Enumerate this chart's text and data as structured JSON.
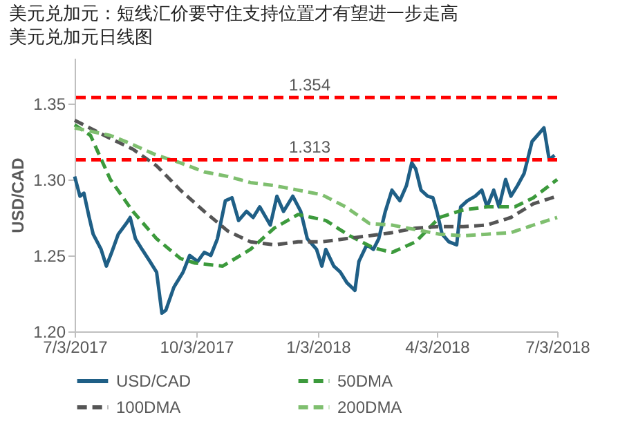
{
  "chart_data": {
    "type": "line",
    "title": "美元兑加元：短线汇价要守住支持位置才有望进一步走高",
    "subtitle": "美元兑加元日线图",
    "ylabel": "USD/CAD",
    "xlim": [
      "2017-07-03",
      "2018-07-03"
    ],
    "xticks": [
      {
        "value": "2017-07-03",
        "label": "7/3/2017"
      },
      {
        "value": "2017-10-03",
        "label": "10/3/2017"
      },
      {
        "value": "2018-01-03",
        "label": "1/3/2018"
      },
      {
        "value": "2018-04-03",
        "label": "4/3/2018"
      },
      {
        "value": "2018-07-03",
        "label": "7/3/2018"
      }
    ],
    "ylim": [
      1.2,
      1.38
    ],
    "yticks": [
      {
        "value": 1.2,
        "label": "1.20"
      },
      {
        "value": 1.25,
        "label": "1.25"
      },
      {
        "value": 1.3,
        "label": "1.30"
      },
      {
        "value": 1.35,
        "label": "1.35"
      }
    ],
    "legend": "bottom",
    "grid": false,
    "series": [
      {
        "name": "USD/CAD",
        "color": "#1f5f86",
        "line_style": "solid",
        "x": [
          "2017-07-03",
          "2017-07-07",
          "2017-07-10",
          "2017-07-14",
          "2017-07-17",
          "2017-07-23",
          "2017-07-27",
          "2017-07-31",
          "2017-08-05",
          "2017-08-11",
          "2017-08-14",
          "2017-08-18",
          "2017-08-23",
          "2017-08-29",
          "2017-09-03",
          "2017-09-07",
          "2017-09-10",
          "2017-09-16",
          "2017-09-23",
          "2017-09-28",
          "2017-10-04",
          "2017-10-09",
          "2017-10-14",
          "2017-10-19",
          "2017-10-25",
          "2017-10-30",
          "2017-11-04",
          "2017-11-10",
          "2017-11-15",
          "2017-11-20",
          "2017-11-28",
          "2017-12-03",
          "2017-12-08",
          "2017-12-15",
          "2017-12-21",
          "2017-12-26",
          "2018-01-02",
          "2018-01-06",
          "2018-01-09",
          "2018-01-15",
          "2018-01-20",
          "2018-01-25",
          "2018-01-31",
          "2018-02-03",
          "2018-02-09",
          "2018-02-14",
          "2018-02-18",
          "2018-02-23",
          "2018-02-28",
          "2018-03-06",
          "2018-03-11",
          "2018-03-15",
          "2018-03-18",
          "2018-03-22",
          "2018-03-27",
          "2018-03-31",
          "2018-04-03",
          "2018-04-07",
          "2018-04-12",
          "2018-04-18",
          "2018-04-21",
          "2018-04-26",
          "2018-05-02",
          "2018-05-07",
          "2018-05-11",
          "2018-05-16",
          "2018-05-20",
          "2018-05-25",
          "2018-05-29",
          "2018-06-03",
          "2018-06-08",
          "2018-06-14",
          "2018-06-19",
          "2018-06-23",
          "2018-06-27",
          "2018-07-01"
        ],
        "values": [
          1.302,
          1.289,
          1.291,
          1.275,
          1.264,
          1.254,
          1.243,
          1.252,
          1.264,
          1.271,
          1.275,
          1.261,
          1.254,
          1.246,
          1.239,
          1.212,
          1.214,
          1.229,
          1.239,
          1.25,
          1.246,
          1.252,
          1.25,
          1.261,
          1.286,
          1.288,
          1.273,
          1.279,
          1.275,
          1.282,
          1.27,
          1.289,
          1.279,
          1.289,
          1.279,
          1.261,
          1.254,
          1.243,
          1.254,
          1.243,
          1.239,
          1.232,
          1.227,
          1.246,
          1.257,
          1.254,
          1.261,
          1.279,
          1.293,
          1.286,
          1.296,
          1.311,
          1.307,
          1.293,
          1.289,
          1.288,
          1.279,
          1.264,
          1.259,
          1.257,
          1.282,
          1.286,
          1.289,
          1.293,
          1.282,
          1.293,
          1.282,
          1.3,
          1.289,
          1.296,
          1.304,
          1.325,
          1.33,
          1.334,
          1.313,
          1.316
        ]
      },
      {
        "name": "50DMA",
        "color": "#3c9a3c",
        "line_style": "dashed",
        "x": [
          "2017-07-03",
          "2017-07-15",
          "2017-07-30",
          "2017-08-16",
          "2017-09-03",
          "2017-09-21",
          "2017-10-02",
          "2017-10-23",
          "2017-11-13",
          "2017-12-01",
          "2017-12-19",
          "2018-01-09",
          "2018-01-27",
          "2018-02-14",
          "2018-02-28",
          "2018-03-18",
          "2018-04-05",
          "2018-04-23",
          "2018-05-11",
          "2018-06-01",
          "2018-06-15",
          "2018-07-03"
        ],
        "values": [
          1.336,
          1.329,
          1.3,
          1.279,
          1.261,
          1.248,
          1.245,
          1.243,
          1.254,
          1.268,
          1.277,
          1.273,
          1.263,
          1.255,
          1.252,
          1.259,
          1.275,
          1.28,
          1.282,
          1.282,
          1.288,
          1.3
        ]
      },
      {
        "name": "100DMA",
        "color": "#555555",
        "line_style": "dashed",
        "x": [
          "2017-07-03",
          "2017-07-30",
          "2017-08-16",
          "2017-09-03",
          "2017-09-21",
          "2017-10-09",
          "2017-10-27",
          "2017-11-13",
          "2017-12-01",
          "2017-12-19",
          "2018-01-06",
          "2018-01-24",
          "2018-02-11",
          "2018-02-28",
          "2018-03-18",
          "2018-04-05",
          "2018-04-23",
          "2018-05-11",
          "2018-05-29",
          "2018-06-15",
          "2018-07-03"
        ],
        "values": [
          1.339,
          1.327,
          1.32,
          1.309,
          1.293,
          1.279,
          1.266,
          1.259,
          1.257,
          1.259,
          1.259,
          1.261,
          1.263,
          1.265,
          1.268,
          1.269,
          1.269,
          1.27,
          1.275,
          1.284,
          1.289
        ]
      },
      {
        "name": "200DMA",
        "color": "#7fbf6f",
        "line_style": "dashed",
        "x": [
          "2017-07-03",
          "2017-07-30",
          "2017-08-16",
          "2017-09-03",
          "2017-09-21",
          "2017-10-09",
          "2017-10-27",
          "2017-11-13",
          "2017-12-01",
          "2017-12-19",
          "2018-01-06",
          "2018-01-24",
          "2018-02-11",
          "2018-02-28",
          "2018-03-18",
          "2018-04-05",
          "2018-04-23",
          "2018-05-11",
          "2018-05-29",
          "2018-06-15",
          "2018-07-03"
        ],
        "values": [
          1.334,
          1.329,
          1.323,
          1.316,
          1.311,
          1.305,
          1.302,
          1.298,
          1.296,
          1.293,
          1.29,
          1.282,
          1.271,
          1.27,
          1.267,
          1.264,
          1.263,
          1.264,
          1.265,
          1.27,
          1.275
        ]
      }
    ],
    "ref_lines": [
      {
        "axis": "y",
        "value": 1.354,
        "label": "1.354",
        "color": "#ff0000",
        "line_style": "dashed"
      },
      {
        "axis": "y",
        "value": 1.313,
        "label": "1.313",
        "color": "#ff0000",
        "line_style": "dashed"
      }
    ]
  }
}
